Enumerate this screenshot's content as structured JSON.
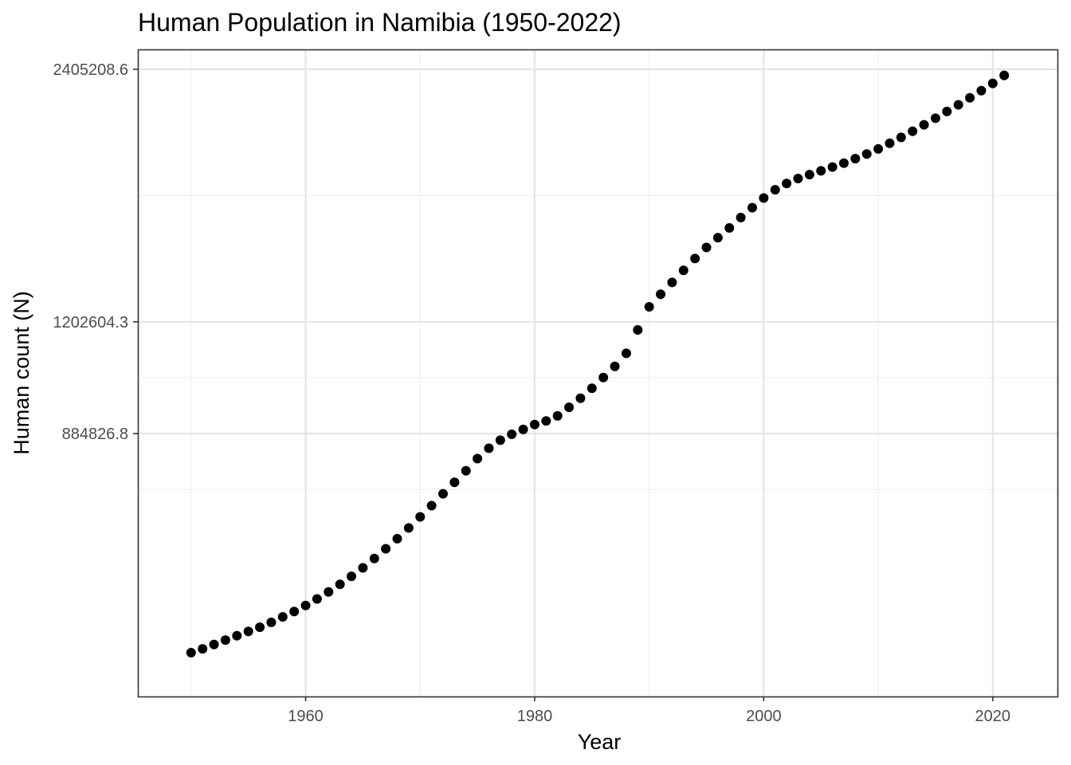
{
  "chart_data": {
    "type": "scatter",
    "title": "Human Population in Namibia (1950-2022)",
    "xlabel": "Year",
    "ylabel": "Human count (N)",
    "scale_y": "log",
    "grid": true,
    "legend": "none",
    "point_color": "#000000",
    "x_ticks": [
      1960,
      1980,
      2000,
      2020
    ],
    "y_ticks": [
      884826.8,
      1202604.3,
      2405208.6
    ],
    "y_tick_labels": [
      "884826.8",
      "1202604.3",
      "2405208.6"
    ],
    "xlim": [
      1945.35,
      2025.65
    ],
    "ylim": [
      430000,
      2540000
    ],
    "x": [
      1950,
      1951,
      1952,
      1953,
      1954,
      1955,
      1956,
      1957,
      1958,
      1959,
      1960,
      1961,
      1962,
      1963,
      1964,
      1965,
      1966,
      1967,
      1968,
      1969,
      1970,
      1971,
      1972,
      1973,
      1974,
      1975,
      1976,
      1977,
      1978,
      1979,
      1980,
      1981,
      1982,
      1983,
      1984,
      1985,
      1986,
      1987,
      1988,
      1989,
      1990,
      1991,
      1992,
      1993,
      1994,
      1995,
      1996,
      1997,
      1998,
      1999,
      2000,
      2001,
      2002,
      2003,
      2004,
      2005,
      2006,
      2007,
      2008,
      2009,
      2010,
      2011,
      2012,
      2013,
      2014,
      2015,
      2016,
      2017,
      2018,
      2019,
      2020,
      2021
    ],
    "y": [
      485000,
      490000,
      496000,
      502000,
      508000,
      514000,
      520000,
      527000,
      535000,
      543000,
      552000,
      562000,
      573000,
      585000,
      598000,
      612000,
      628000,
      645000,
      663000,
      683000,
      704000,
      726000,
      750000,
      774000,
      799000,
      826000,
      850000,
      869000,
      883000,
      895000,
      907000,
      916000,
      929000,
      951000,
      975000,
      1002000,
      1032000,
      1064000,
      1103000,
      1176000,
      1253000,
      1297000,
      1340000,
      1385000,
      1431000,
      1475000,
      1515000,
      1556000,
      1601000,
      1645000,
      1689000,
      1728000,
      1758000,
      1782000,
      1801000,
      1820000,
      1839000,
      1859000,
      1882000,
      1906000,
      1933000,
      1963000,
      1995000,
      2029000,
      2065000,
      2103000,
      2142000,
      2182000,
      2224000,
      2268000,
      2314000,
      2365000
    ]
  }
}
